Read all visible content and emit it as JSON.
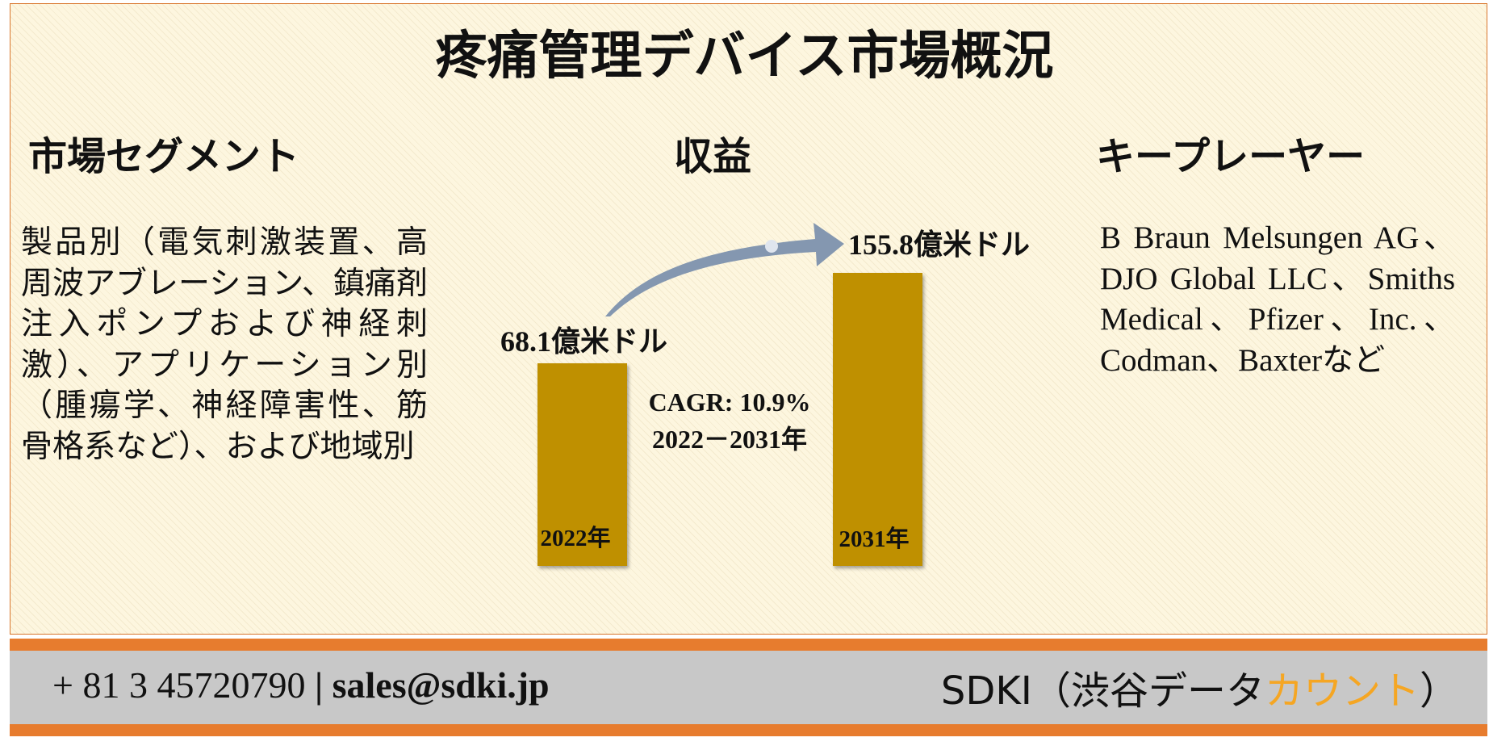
{
  "title": "疼痛管理デバイス市場概況",
  "segments": {
    "heading": "市場セグメント",
    "text": "製品別（電気刺激装置、高周波アブレーション、鎮痛剤注入ポンプおよび神経刺激）、アプリケーション別（腫瘍学、神経障害性、筋骨格系など）、および地域別"
  },
  "revenue": {
    "heading": "収益",
    "start_value": "68.1億米ドル",
    "end_value": "155.8億米ドル",
    "start_year": "2022年",
    "end_year": "2031年",
    "cagr": "CAGR: 10.9%",
    "period": "2022－2031年"
  },
  "players": {
    "heading": "キープレーヤー",
    "text": "B Braun Melsungen AG、DJO Global LLC、Smiths Medical、Pfizer、Inc.、Codman、Baxterなど"
  },
  "footer": {
    "phone": "+ 81 3 45720790",
    "separator": "|",
    "email": "sales@sdki.jp",
    "brand": "SDKI（渋谷データ",
    "brand_accent": "カウント",
    "brand_end": "）"
  }
}
